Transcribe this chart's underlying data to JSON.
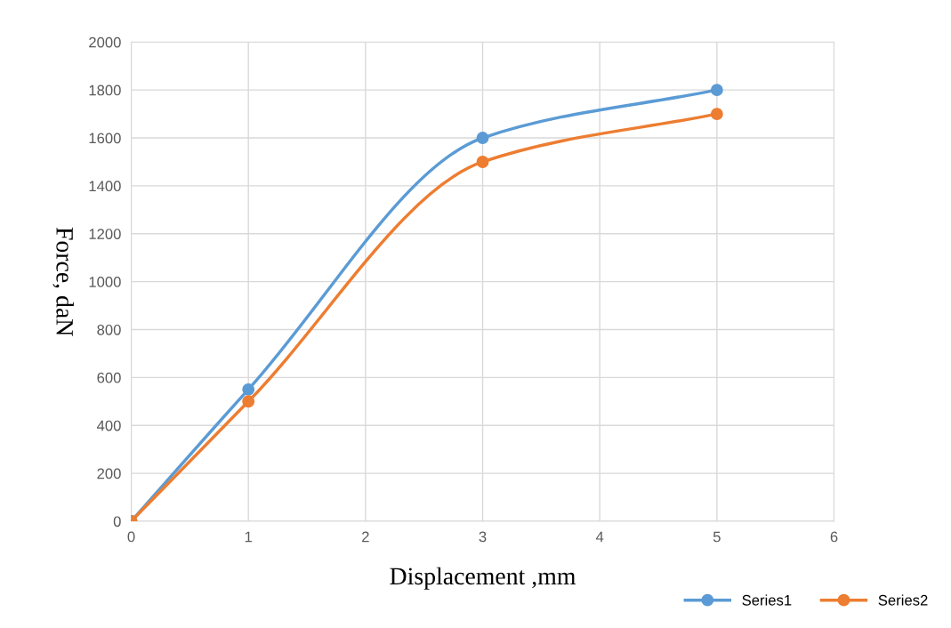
{
  "chart_data": {
    "type": "line",
    "xlabel": "Displacement ,mm",
    "ylabel": "Force, daN",
    "x": [
      0,
      1,
      3,
      5
    ],
    "series": [
      {
        "name": "Series1",
        "color": "#5b9bd5",
        "values": [
          0,
          550,
          1600,
          1800
        ]
      },
      {
        "name": "Series2",
        "color": "#ed7d31",
        "values": [
          0,
          500,
          1500,
          1700
        ]
      }
    ],
    "xlim": [
      0,
      6
    ],
    "xticks": [
      0,
      1,
      2,
      3,
      4,
      5,
      6
    ],
    "ylim": [
      0,
      2000
    ],
    "yticks": [
      0,
      200,
      400,
      600,
      800,
      1000,
      1200,
      1400,
      1600,
      1800,
      2000
    ],
    "grid": true,
    "legend": "bottom right",
    "marker": "circle",
    "line_style": "solid"
  }
}
